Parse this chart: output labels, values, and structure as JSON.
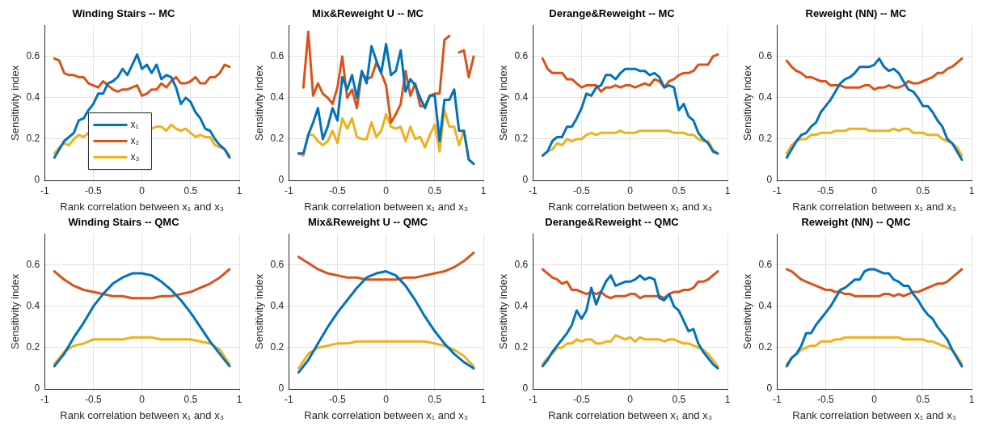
{
  "chart_data": [
    {
      "type": "line",
      "title": "Winding Stairs -- MC",
      "xlabel": "Rank correlation between x₁ and x₃",
      "ylabel": "Sensitivity index",
      "x": [
        -0.9,
        -0.85,
        -0.8,
        -0.75,
        -0.7,
        -0.65,
        -0.6,
        -0.55,
        -0.5,
        -0.45,
        -0.4,
        -0.35,
        -0.3,
        -0.25,
        -0.2,
        -0.15,
        -0.1,
        -0.05,
        0,
        0.05,
        0.1,
        0.15,
        0.2,
        0.25,
        0.3,
        0.35,
        0.4,
        0.45,
        0.5,
        0.55,
        0.6,
        0.65,
        0.7,
        0.75,
        0.8,
        0.85,
        0.9
      ],
      "xlim": [
        -1,
        1
      ],
      "xticks": [
        -1,
        -0.5,
        0,
        0.5,
        1
      ],
      "ylim": [
        0,
        0.75
      ],
      "yticks": [
        0,
        0.2,
        0.4,
        0.6
      ],
      "grid": true,
      "legend": "bottom",
      "series": [
        {
          "name": "x₁",
          "color": "#0072bd",
          "values": [
            0.11,
            0.15,
            0.19,
            0.21,
            0.23,
            0.29,
            0.3,
            0.34,
            0.37,
            0.42,
            0.42,
            0.47,
            0.48,
            0.5,
            0.54,
            0.51,
            0.56,
            0.61,
            0.54,
            0.56,
            0.52,
            0.56,
            0.49,
            0.51,
            0.5,
            0.45,
            0.37,
            0.4,
            0.38,
            0.33,
            0.3,
            0.25,
            0.24,
            0.2,
            0.17,
            0.15,
            0.11
          ]
        },
        {
          "name": "x₂",
          "color": "#d95319",
          "values": [
            0.59,
            0.58,
            0.52,
            0.51,
            0.51,
            0.5,
            0.5,
            0.47,
            0.46,
            0.45,
            0.48,
            0.46,
            0.44,
            0.43,
            0.44,
            0.44,
            0.45,
            0.46,
            0.41,
            0.42,
            0.44,
            0.44,
            0.47,
            0.45,
            0.48,
            0.5,
            0.47,
            0.47,
            0.48,
            0.5,
            0.47,
            0.47,
            0.5,
            0.5,
            0.52,
            0.56,
            0.55
          ]
        },
        {
          "name": "x₃",
          "color": "#edb120",
          "values": [
            0.13,
            0.16,
            0.18,
            0.17,
            0.2,
            0.22,
            0.21,
            0.23,
            null,
            null,
            null,
            null,
            null,
            null,
            null,
            null,
            null,
            null,
            null,
            null,
            0.25,
            0.26,
            0.26,
            0.24,
            0.27,
            0.25,
            0.24,
            0.25,
            0.23,
            0.21,
            0.22,
            0.21,
            0.21,
            0.17,
            0.16,
            0.15,
            0.12
          ]
        }
      ]
    },
    {
      "type": "line",
      "title": "Mix&Reweight U -- MC",
      "xlabel": "Rank correlation between x₁ and x₃",
      "ylabel": "Sensitivity index",
      "x": [
        -0.9,
        -0.85,
        -0.8,
        -0.75,
        -0.7,
        -0.65,
        -0.6,
        -0.55,
        -0.5,
        -0.45,
        -0.4,
        -0.35,
        -0.3,
        -0.25,
        -0.2,
        -0.15,
        -0.1,
        -0.05,
        0,
        0.05,
        0.1,
        0.15,
        0.2,
        0.25,
        0.3,
        0.35,
        0.4,
        0.45,
        0.5,
        0.55,
        0.6,
        0.65,
        0.7,
        0.75,
        0.8,
        0.85,
        0.9
      ],
      "xlim": [
        -1,
        1
      ],
      "xticks": [
        -1,
        -0.5,
        0,
        0.5,
        1
      ],
      "ylim": [
        0,
        0.75
      ],
      "yticks": [
        0,
        0.2,
        0.4,
        0.6
      ],
      "grid": true,
      "series": [
        {
          "color": "#0072bd",
          "values": [
            0.13,
            0.13,
            0.22,
            0.28,
            0.35,
            0.2,
            0.26,
            0.35,
            0.29,
            0.5,
            0.44,
            0.51,
            0.4,
            0.53,
            0.47,
            0.65,
            0.58,
            0.52,
            0.66,
            0.51,
            0.53,
            0.63,
            0.43,
            0.49,
            0.46,
            0.4,
            0.35,
            0.41,
            0.41,
            0.19,
            0.39,
            0.39,
            0.44,
            0.24,
            0.24,
            0.1,
            0.08
          ]
        },
        {
          "color": "#d95319",
          "values": [
            null,
            0.45,
            0.72,
            0.41,
            0.47,
            0.42,
            0.4,
            0.37,
            0.45,
            0.6,
            0.4,
            0.44,
            0.35,
            0.52,
            0.49,
            0.5,
            0.57,
            0.52,
            0.46,
            0.28,
            0.32,
            0.37,
            0.53,
            0.41,
            0.47,
            0.36,
            0.36,
            0.41,
            0.42,
            0.42,
            0.68,
            0.7,
            null,
            0.62,
            0.63,
            0.5,
            0.6
          ]
        },
        {
          "color": "#edb120",
          "values": [
            0.13,
            0.12,
            0.22,
            0.22,
            0.19,
            0.17,
            0.19,
            0.24,
            0.18,
            0.3,
            0.25,
            0.3,
            0.21,
            0.2,
            0.2,
            0.28,
            0.21,
            0.24,
            0.32,
            0.26,
            0.25,
            0.26,
            0.19,
            0.26,
            0.2,
            0.21,
            0.16,
            0.22,
            0.27,
            0.14,
            0.34,
            0.26,
            0.26,
            0.17,
            0.24,
            0.1,
            0.08
          ]
        }
      ]
    },
    {
      "type": "line",
      "title": "Derange&Reweight -- MC",
      "xlabel": "Rank correlation between x₁ and x₃",
      "ylabel": "Sensitivity index",
      "x": [
        -0.9,
        -0.85,
        -0.8,
        -0.75,
        -0.7,
        -0.65,
        -0.6,
        -0.55,
        -0.5,
        -0.45,
        -0.4,
        -0.35,
        -0.3,
        -0.25,
        -0.2,
        -0.15,
        -0.1,
        -0.05,
        0,
        0.05,
        0.1,
        0.15,
        0.2,
        0.25,
        0.3,
        0.35,
        0.4,
        0.45,
        0.5,
        0.55,
        0.6,
        0.65,
        0.7,
        0.75,
        0.8,
        0.85,
        0.9
      ],
      "xlim": [
        -1,
        1
      ],
      "xticks": [
        -1,
        -0.5,
        0,
        0.5,
        1
      ],
      "ylim": [
        0,
        0.75
      ],
      "yticks": [
        0,
        0.2,
        0.4,
        0.6
      ],
      "grid": true,
      "series": [
        {
          "color": "#0072bd",
          "values": [
            0.12,
            0.14,
            0.19,
            0.21,
            0.21,
            0.26,
            0.26,
            0.3,
            0.35,
            0.42,
            0.41,
            0.45,
            0.46,
            0.51,
            0.51,
            0.49,
            0.52,
            0.54,
            0.54,
            0.54,
            0.53,
            0.53,
            0.51,
            0.52,
            0.5,
            0.45,
            0.46,
            0.45,
            0.34,
            0.37,
            0.31,
            0.29,
            0.23,
            0.2,
            0.18,
            0.14,
            0.13
          ]
        },
        {
          "color": "#d95319",
          "values": [
            0.59,
            0.54,
            0.52,
            0.52,
            0.52,
            0.49,
            0.49,
            0.47,
            0.45,
            0.46,
            0.46,
            0.46,
            0.43,
            0.45,
            0.45,
            0.46,
            0.45,
            0.46,
            0.46,
            0.45,
            0.46,
            0.47,
            0.46,
            0.49,
            0.48,
            0.45,
            0.48,
            0.49,
            0.51,
            0.52,
            0.52,
            0.53,
            0.56,
            0.56,
            0.56,
            0.6,
            0.61
          ]
        },
        {
          "color": "#edb120",
          "values": [
            0.12,
            0.14,
            0.15,
            0.18,
            0.17,
            0.2,
            0.19,
            0.2,
            0.2,
            0.22,
            0.23,
            0.22,
            0.23,
            0.23,
            0.23,
            0.23,
            0.24,
            0.23,
            0.23,
            0.23,
            0.24,
            0.24,
            0.24,
            0.24,
            0.24,
            0.24,
            0.24,
            0.23,
            0.23,
            0.23,
            0.22,
            0.22,
            0.2,
            0.19,
            0.19,
            0.15,
            0.13
          ]
        }
      ]
    },
    {
      "type": "line",
      "title": "Reweight (NN) -- MC",
      "xlabel": "Rank correlation between x₁ and x₃",
      "ylabel": "Sensitivity index",
      "x": [
        -0.9,
        -0.85,
        -0.8,
        -0.75,
        -0.7,
        -0.65,
        -0.6,
        -0.55,
        -0.5,
        -0.45,
        -0.4,
        -0.35,
        -0.3,
        -0.25,
        -0.2,
        -0.15,
        -0.1,
        -0.05,
        0,
        0.05,
        0.1,
        0.15,
        0.2,
        0.25,
        0.3,
        0.35,
        0.4,
        0.45,
        0.5,
        0.55,
        0.6,
        0.65,
        0.7,
        0.75,
        0.8,
        0.85,
        0.9
      ],
      "xlim": [
        -1,
        1
      ],
      "xticks": [
        -1,
        -0.5,
        0,
        0.5,
        1
      ],
      "ylim": [
        0,
        0.75
      ],
      "yticks": [
        0,
        0.2,
        0.4,
        0.6
      ],
      "grid": true,
      "series": [
        {
          "color": "#0072bd",
          "values": [
            0.11,
            0.15,
            0.19,
            0.22,
            0.23,
            0.26,
            0.28,
            0.33,
            0.36,
            0.39,
            0.43,
            0.47,
            0.49,
            0.5,
            0.52,
            0.55,
            0.55,
            0.55,
            0.56,
            0.59,
            0.55,
            0.53,
            0.54,
            0.52,
            0.48,
            0.44,
            0.43,
            0.4,
            0.36,
            0.36,
            0.33,
            0.29,
            0.26,
            0.2,
            0.18,
            0.14,
            0.1
          ]
        },
        {
          "color": "#d95319",
          "values": [
            0.58,
            0.55,
            0.53,
            0.52,
            0.5,
            0.5,
            0.49,
            0.48,
            0.48,
            0.46,
            0.46,
            0.46,
            0.45,
            0.45,
            0.45,
            0.45,
            0.46,
            0.46,
            0.44,
            0.45,
            0.45,
            0.46,
            0.45,
            0.45,
            0.46,
            0.48,
            0.47,
            0.47,
            0.48,
            0.49,
            0.5,
            0.52,
            0.52,
            0.54,
            0.55,
            0.57,
            0.59
          ]
        },
        {
          "color": "#edb120",
          "values": [
            0.13,
            0.17,
            0.19,
            0.2,
            0.2,
            0.22,
            0.22,
            0.23,
            0.23,
            0.23,
            0.24,
            0.24,
            0.24,
            0.25,
            0.25,
            0.25,
            0.25,
            0.24,
            0.24,
            0.24,
            0.24,
            0.24,
            0.25,
            0.24,
            0.25,
            0.25,
            0.23,
            0.23,
            0.23,
            0.22,
            0.22,
            0.22,
            0.2,
            0.19,
            0.18,
            0.16,
            0.12
          ]
        }
      ]
    },
    {
      "type": "line",
      "title": "Winding Stairs -- QMC",
      "xlabel": "Rank correlation between x₁ and x₃",
      "ylabel": "Sensitivity index",
      "x": [
        -0.9,
        -0.8,
        -0.7,
        -0.6,
        -0.5,
        -0.4,
        -0.3,
        -0.2,
        -0.1,
        0,
        0.1,
        0.2,
        0.3,
        0.4,
        0.5,
        0.6,
        0.7,
        0.8,
        0.9
      ],
      "xlim": [
        -1,
        1
      ],
      "xticks": [
        -1,
        -0.5,
        0,
        0.5,
        1
      ],
      "ylim": [
        0,
        0.75
      ],
      "yticks": [
        0,
        0.2,
        0.4,
        0.6
      ],
      "grid": true,
      "series": [
        {
          "color": "#0072bd",
          "values": [
            0.11,
            0.17,
            0.25,
            0.32,
            0.4,
            0.46,
            0.51,
            0.54,
            0.56,
            0.56,
            0.55,
            0.52,
            0.48,
            0.43,
            0.37,
            0.3,
            0.23,
            0.17,
            0.11
          ]
        },
        {
          "color": "#d95319",
          "values": [
            0.57,
            0.53,
            0.5,
            0.48,
            0.47,
            0.46,
            0.45,
            0.45,
            0.44,
            0.44,
            0.44,
            0.45,
            0.45,
            0.46,
            0.47,
            0.49,
            0.51,
            0.54,
            0.58
          ]
        },
        {
          "color": "#edb120",
          "values": [
            0.12,
            0.18,
            0.21,
            0.22,
            0.24,
            0.24,
            0.24,
            0.24,
            0.25,
            0.25,
            0.25,
            0.24,
            0.24,
            0.24,
            0.24,
            0.23,
            0.22,
            0.19,
            0.12
          ]
        }
      ]
    },
    {
      "type": "line",
      "title": "Mix&Reweight U -- QMC",
      "xlabel": "Rank correlation between x₁ and x₃",
      "ylabel": "Sensitivity index",
      "x": [
        -0.9,
        -0.8,
        -0.7,
        -0.6,
        -0.5,
        -0.4,
        -0.3,
        -0.2,
        -0.1,
        0,
        0.1,
        0.2,
        0.3,
        0.4,
        0.5,
        0.6,
        0.7,
        0.8,
        0.9
      ],
      "xlim": [
        -1,
        1
      ],
      "xticks": [
        -1,
        -0.5,
        0,
        0.5,
        1
      ],
      "ylim": [
        0,
        0.75
      ],
      "yticks": [
        0,
        0.2,
        0.4,
        0.6
      ],
      "grid": true,
      "series": [
        {
          "color": "#0072bd",
          "values": [
            0.08,
            0.14,
            0.22,
            0.3,
            0.37,
            0.43,
            0.49,
            0.54,
            0.56,
            0.57,
            0.55,
            0.5,
            0.43,
            0.35,
            0.28,
            0.22,
            0.17,
            0.13,
            0.1
          ]
        },
        {
          "color": "#d95319",
          "values": [
            0.64,
            0.61,
            0.58,
            0.56,
            0.55,
            0.54,
            0.54,
            0.53,
            0.53,
            0.53,
            0.53,
            0.54,
            0.54,
            0.55,
            0.56,
            0.57,
            0.59,
            0.62,
            0.66
          ]
        },
        {
          "color": "#edb120",
          "values": [
            0.1,
            0.17,
            0.2,
            0.21,
            0.22,
            0.22,
            0.23,
            0.23,
            0.23,
            0.23,
            0.23,
            0.23,
            0.23,
            0.23,
            0.22,
            0.21,
            0.19,
            0.16,
            0.11
          ]
        }
      ]
    },
    {
      "type": "line",
      "title": "Derange&Reweight -- QMC",
      "xlabel": "Rank correlation between x₁ and x₃",
      "ylabel": "Sensitivity index",
      "x": [
        -0.9,
        -0.85,
        -0.8,
        -0.75,
        -0.7,
        -0.65,
        -0.6,
        -0.55,
        -0.5,
        -0.45,
        -0.4,
        -0.35,
        -0.3,
        -0.25,
        -0.2,
        -0.15,
        -0.1,
        -0.05,
        0,
        0.05,
        0.1,
        0.15,
        0.2,
        0.25,
        0.3,
        0.35,
        0.4,
        0.45,
        0.5,
        0.55,
        0.6,
        0.65,
        0.7,
        0.75,
        0.8,
        0.85,
        0.9
      ],
      "xlim": [
        -1,
        1
      ],
      "xticks": [
        -1,
        -0.5,
        0,
        0.5,
        1
      ],
      "ylim": [
        0,
        0.75
      ],
      "yticks": [
        0,
        0.2,
        0.4,
        0.6
      ],
      "grid": true,
      "series": [
        {
          "color": "#0072bd",
          "values": [
            0.11,
            0.14,
            0.18,
            0.21,
            0.24,
            0.27,
            0.31,
            0.38,
            0.34,
            0.38,
            0.49,
            0.41,
            0.47,
            0.52,
            0.55,
            0.5,
            0.51,
            0.52,
            0.52,
            0.53,
            0.55,
            0.53,
            0.54,
            0.53,
            0.44,
            0.43,
            0.46,
            0.4,
            0.38,
            0.33,
            0.28,
            0.29,
            0.22,
            0.18,
            0.15,
            0.12,
            0.1
          ]
        },
        {
          "color": "#d95319",
          "values": [
            0.58,
            0.56,
            0.54,
            0.53,
            0.51,
            0.52,
            0.48,
            0.48,
            0.47,
            0.46,
            0.47,
            0.46,
            0.47,
            0.45,
            0.44,
            0.45,
            0.45,
            0.45,
            0.46,
            0.46,
            0.44,
            0.45,
            0.45,
            0.45,
            0.45,
            0.44,
            0.46,
            0.47,
            0.47,
            0.48,
            0.48,
            0.49,
            0.52,
            0.52,
            0.53,
            0.55,
            0.57
          ]
        },
        {
          "color": "#edb120",
          "values": [
            0.12,
            0.15,
            0.17,
            0.2,
            0.2,
            0.22,
            0.22,
            0.24,
            0.23,
            0.24,
            0.24,
            0.22,
            0.22,
            0.23,
            0.23,
            0.26,
            0.25,
            0.24,
            0.25,
            0.23,
            0.25,
            0.24,
            0.24,
            0.24,
            0.24,
            0.23,
            0.24,
            0.24,
            0.23,
            0.22,
            0.22,
            0.21,
            0.2,
            0.19,
            0.17,
            0.14,
            0.11
          ]
        }
      ]
    },
    {
      "type": "line",
      "title": "Reweight (NN) -- QMC",
      "xlabel": "Rank correlation between x₁ and x₃",
      "ylabel": "Sensitivity index",
      "x": [
        -0.9,
        -0.85,
        -0.8,
        -0.75,
        -0.7,
        -0.65,
        -0.6,
        -0.55,
        -0.5,
        -0.45,
        -0.4,
        -0.35,
        -0.3,
        -0.25,
        -0.2,
        -0.15,
        -0.1,
        -0.05,
        0,
        0.05,
        0.1,
        0.15,
        0.2,
        0.25,
        0.3,
        0.35,
        0.4,
        0.45,
        0.5,
        0.55,
        0.6,
        0.65,
        0.7,
        0.75,
        0.8,
        0.85,
        0.9
      ],
      "xlim": [
        -1,
        1
      ],
      "xticks": [
        -1,
        -0.5,
        0,
        0.5,
        1
      ],
      "ylim": [
        0,
        0.75
      ],
      "yticks": [
        0,
        0.2,
        0.4,
        0.6
      ],
      "grid": true,
      "series": [
        {
          "color": "#0072bd",
          "values": [
            0.11,
            0.15,
            0.17,
            0.21,
            0.27,
            0.27,
            0.31,
            0.34,
            0.37,
            0.4,
            0.44,
            0.48,
            0.49,
            0.51,
            0.53,
            0.53,
            0.57,
            0.58,
            0.58,
            0.57,
            0.56,
            0.56,
            0.53,
            0.52,
            0.5,
            0.5,
            0.46,
            0.43,
            0.39,
            0.36,
            0.34,
            0.3,
            0.27,
            0.24,
            0.19,
            0.15,
            0.11
          ]
        },
        {
          "color": "#d95319",
          "values": [
            0.58,
            0.57,
            0.55,
            0.53,
            0.52,
            0.51,
            0.5,
            0.49,
            0.48,
            0.48,
            0.47,
            0.47,
            0.46,
            0.46,
            0.45,
            0.45,
            0.45,
            0.45,
            0.45,
            0.45,
            0.46,
            0.46,
            0.45,
            0.46,
            0.45,
            0.46,
            0.47,
            0.47,
            0.48,
            0.49,
            0.5,
            0.51,
            0.51,
            0.52,
            0.54,
            0.56,
            0.58
          ]
        },
        {
          "color": "#edb120",
          "values": [
            0.12,
            0.15,
            0.17,
            0.19,
            0.2,
            0.21,
            0.21,
            0.23,
            0.23,
            0.23,
            0.24,
            0.24,
            0.25,
            0.25,
            0.25,
            0.25,
            0.25,
            0.25,
            0.25,
            0.25,
            0.25,
            0.25,
            0.25,
            0.25,
            0.24,
            0.24,
            0.24,
            0.24,
            0.24,
            0.23,
            0.23,
            0.22,
            0.21,
            0.2,
            0.19,
            0.16,
            0.12
          ]
        }
      ]
    }
  ]
}
